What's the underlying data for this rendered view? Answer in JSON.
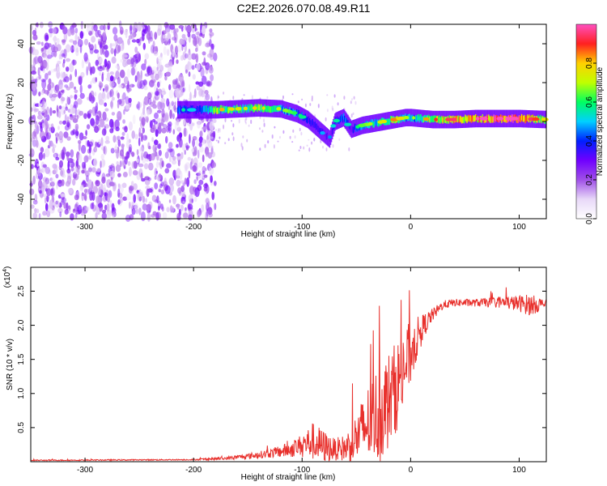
{
  "title": "C2E2.2026.070.08.49.R11",
  "chart_data": [
    {
      "type": "heatmap",
      "name": "spectrogram",
      "xlabel": "Height of straight line (km)",
      "ylabel": "Frequency (Hz)",
      "xlim": [
        -350,
        125
      ],
      "ylim": [
        -50,
        50
      ],
      "xticks": [
        -300,
        -200,
        -100,
        0,
        100
      ],
      "yticks": [
        -40,
        -20,
        0,
        20,
        40
      ],
      "noise_region_x": [
        -350,
        -180
      ],
      "signal_trace": {
        "x": [
          -215,
          -200,
          -180,
          -160,
          -140,
          -120,
          -105,
          -95,
          -85,
          -75,
          -70,
          -62,
          -55,
          -45,
          -35,
          -25,
          -15,
          -5,
          0,
          20,
          40,
          60,
          80,
          100,
          125
        ],
        "freq": [
          6,
          6,
          6,
          6.5,
          7,
          6.5,
          4,
          1,
          -4,
          -9,
          0,
          2,
          -4,
          -2,
          -1,
          0,
          1,
          2,
          2,
          1,
          1,
          1.5,
          1.5,
          1.5,
          1
        ],
        "amp": [
          0.45,
          0.35,
          0.7,
          0.6,
          0.65,
          0.55,
          0.45,
          0.4,
          0.35,
          0.3,
          0.4,
          0.45,
          0.35,
          0.5,
          0.55,
          0.6,
          0.7,
          0.55,
          0.5,
          0.75,
          0.8,
          0.85,
          0.95,
          0.95,
          0.6
        ]
      },
      "colorbar": {
        "label": "Normalized spectral amplitude",
        "ticks": [
          0.0,
          0.2,
          0.4,
          0.6,
          0.8
        ],
        "tick_labels": [
          "0.0",
          "0.2",
          "0.4",
          "0.6",
          "0.8"
        ],
        "range": [
          0,
          1
        ],
        "colors": [
          "#ffffff",
          "#e8d8f8",
          "#a050e8",
          "#7000ff",
          "#0020ff",
          "#00d0ff",
          "#00ff60",
          "#c0ff00",
          "#ffd000",
          "#ff2020",
          "#ff50c0"
        ]
      }
    },
    {
      "type": "line",
      "name": "snr",
      "xlabel": "Height of straight line (km)",
      "ylabel": "SNR (10 * v/v)",
      "multiplier": "(x10",
      "multiplier_exp": "4",
      "multiplier_close": ")",
      "xlim": [
        -350,
        125
      ],
      "ylim": [
        0,
        2.85
      ],
      "xticks": [
        -300,
        -200,
        -100,
        0,
        100
      ],
      "yticks": [
        0.5,
        1.0,
        1.5,
        2.0,
        2.5
      ],
      "ytick_labels": [
        "0.5",
        "1.0",
        "1.5",
        "2.0",
        "2.5"
      ],
      "color": "#e8302c",
      "envelope": {
        "x": [
          -350,
          -200,
          -170,
          -150,
          -130,
          -110,
          -100,
          -90,
          -80,
          -70,
          -60,
          -50,
          -40,
          -30,
          -20,
          -10,
          0,
          10,
          20,
          30,
          40,
          60,
          80,
          100,
          110,
          125
        ],
        "base": [
          0.02,
          0.03,
          0.05,
          0.08,
          0.12,
          0.18,
          0.25,
          0.3,
          0.22,
          0.18,
          0.2,
          0.35,
          0.55,
          0.7,
          0.9,
          1.2,
          1.6,
          1.95,
          2.15,
          2.3,
          2.33,
          2.33,
          2.34,
          2.32,
          2.3,
          2.31
        ],
        "jitter": [
          0.01,
          0.01,
          0.03,
          0.05,
          0.08,
          0.15,
          0.2,
          0.35,
          0.3,
          0.2,
          0.25,
          0.45,
          0.7,
          0.9,
          0.9,
          0.8,
          0.6,
          0.25,
          0.12,
          0.08,
          0.07,
          0.07,
          0.1,
          0.15,
          0.2,
          0.08
        ]
      }
    }
  ]
}
